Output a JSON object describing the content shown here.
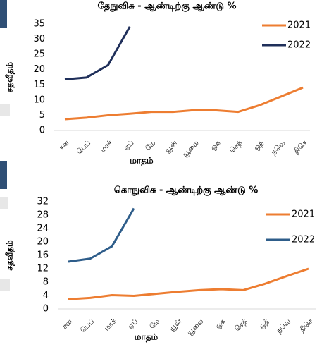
{
  "chart_data": [
    {
      "type": "line",
      "title": "தேநுவிசு - ஆண்டிற்கு ஆண்டு %",
      "y_label": "சதவீதம்",
      "x_label": "மாதம்",
      "categories": [
        "சன",
        "பெப்",
        "மாச்",
        "ஏப்",
        "மே",
        "யூன்",
        "யூலை",
        "ஓக",
        "செத்",
        "ஒத்",
        "நவெ",
        "திசெ"
      ],
      "series": [
        {
          "name": "2021",
          "color": "#ed7d31",
          "values": [
            3.7,
            4.2,
            5.0,
            5.5,
            6.1,
            6.1,
            6.7,
            6.6,
            6.1,
            8.3,
            11.2,
            14.1
          ]
        },
        {
          "name": "2022",
          "color": "#1f2f5a",
          "values": [
            16.8,
            17.4,
            21.5,
            34.1,
            null,
            null,
            null,
            null,
            null,
            null,
            null,
            null
          ]
        }
      ],
      "ylim": [
        0,
        35
      ],
      "yticks": [
        0,
        5,
        10,
        15,
        20,
        25,
        30,
        35
      ],
      "grid": false,
      "legend": "upper right"
    },
    {
      "type": "line",
      "title": "கொநுவிசு - ஆண்டிற்கு ஆண்டு %",
      "y_label": "சதவீதம்",
      "x_label": "மாதம்",
      "categories": [
        "சன",
        "பெப்",
        "மாச்",
        "ஏப்",
        "மே",
        "யூன்",
        "யூலை",
        "ஓக",
        "செத்",
        "ஒத்",
        "நவெ",
        "திசெ"
      ],
      "series": [
        {
          "name": "2021",
          "color": "#ed7d31",
          "values": [
            2.9,
            3.3,
            4.1,
            3.9,
            4.5,
            5.1,
            5.6,
            5.9,
            5.6,
            7.5,
            9.8,
            12.0
          ]
        },
        {
          "name": "2022",
          "color": "#2e5d8a",
          "values": [
            14.1,
            15.0,
            18.7,
            30.0,
            null,
            null,
            null,
            null,
            null,
            null,
            null,
            null
          ]
        }
      ],
      "ylim": [
        0,
        32
      ],
      "yticks": [
        0,
        4,
        8,
        12,
        16,
        20,
        24,
        28,
        32
      ],
      "grid": false,
      "legend": "upper right"
    }
  ]
}
